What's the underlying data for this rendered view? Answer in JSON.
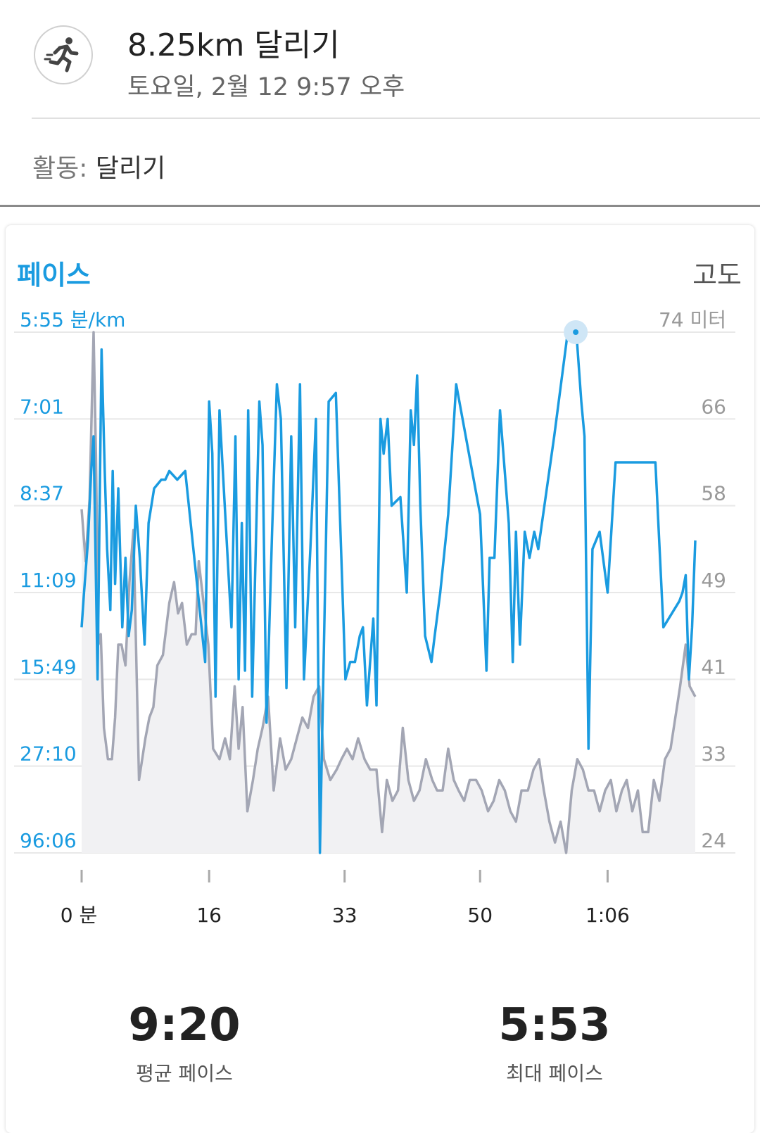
{
  "header": {
    "title": "8.25km 달리기",
    "subtitle": "토요일, 2월 12 9:57 오후",
    "icon": "running-person-icon"
  },
  "activity": {
    "label": "활동:",
    "value": "달리기"
  },
  "chart_card": {
    "title_left": "페이스",
    "title_right": "고도"
  },
  "stats": {
    "avg_pace_value": "9:20",
    "avg_pace_label": "평균 페이스",
    "max_pace_value": "5:53",
    "max_pace_label": "최대 페이스"
  },
  "colors": {
    "accent": "#1a9be0",
    "elevation": "#a3a6b4",
    "grid": "#e8e8e8"
  },
  "chart_data": {
    "type": "line",
    "title": "",
    "x_label": "",
    "x_ticks": [
      "0 분",
      "16",
      "33",
      "50",
      "1:06"
    ],
    "x_tick_minutes": [
      0,
      16,
      33,
      50,
      66
    ],
    "x_range_minutes": [
      0,
      77
    ],
    "left_axis_ticks": [
      "5:55 분/km",
      "7:01",
      "8:37",
      "11:09",
      "15:49",
      "27:10",
      "96:06"
    ],
    "right_axis_ticks": [
      "74 미터",
      "66",
      "58",
      "49",
      "41",
      "33",
      "24"
    ],
    "right_axis_range_m": [
      24,
      74
    ],
    "series": [
      {
        "name": "페이스",
        "axis": "left",
        "note_units": "pace level index: 0 = 96:06 (bottom) … 6 = 5:55 (top)",
        "x": [
          0,
          0.3,
          0.8,
          1.2,
          1.5,
          2.0,
          2.5,
          2.9,
          3.2,
          3.6,
          3.9,
          4.2,
          4.6,
          5.1,
          5.5,
          5.9,
          6.3,
          6.8,
          7.3,
          7.9,
          8.4,
          9.1,
          10.0,
          10.5,
          11.0,
          12.0,
          13.0,
          15.5,
          16.0,
          16.4,
          16.8,
          17.3,
          18.8,
          19.3,
          19.7,
          20.1,
          20.5,
          20.9,
          21.4,
          22.3,
          22.7,
          23.2,
          23.9,
          24.5,
          25.0,
          25.7,
          26.3,
          26.8,
          27.4,
          27.9,
          28.7,
          29.4,
          29.9,
          31.0,
          31.9,
          33.1,
          33.7,
          34.3,
          34.9,
          35.3,
          35.8,
          36.6,
          37.0,
          37.5,
          37.9,
          38.4,
          38.9,
          40.0,
          40.8,
          41.3,
          41.7,
          42.1,
          42.5,
          43.1,
          43.9,
          44.3,
          45.0,
          46.0,
          47.0,
          50.0,
          50.8,
          51.2,
          51.8,
          52.5,
          53.6,
          54.1,
          54.5,
          55.0,
          55.6,
          56.2,
          56.8,
          57.3,
          59.3,
          61.0,
          62.0,
          62.7,
          63.1,
          63.6,
          64.1,
          65.0,
          66.0,
          67.0,
          69.0,
          70.0,
          72.0,
          73.0,
          75.0,
          75.4,
          75.8,
          76.2,
          76.6,
          77.0
        ],
        "y": [
          2.6,
          3.0,
          3.6,
          4.4,
          4.8,
          2.0,
          5.8,
          4.4,
          3.5,
          2.8,
          4.4,
          3.1,
          4.2,
          2.6,
          3.4,
          2.5,
          2.8,
          4.0,
          3.4,
          2.4,
          3.8,
          4.2,
          4.3,
          4.3,
          4.4,
          4.3,
          4.4,
          2.2,
          5.2,
          4.6,
          1.8,
          5.1,
          2.6,
          4.8,
          2.0,
          3.8,
          2.1,
          5.1,
          1.8,
          5.2,
          4.7,
          1.5,
          3.7,
          5.4,
          5.0,
          1.9,
          4.8,
          2.6,
          5.4,
          2.0,
          3.5,
          5.0,
          0.0,
          5.2,
          5.3,
          2.0,
          2.2,
          2.2,
          2.5,
          2.6,
          1.7,
          2.7,
          1.7,
          5.0,
          4.6,
          5.0,
          4.0,
          4.1,
          3.0,
          5.1,
          4.7,
          5.5,
          4.0,
          2.5,
          2.2,
          2.5,
          3.0,
          3.9,
          5.4,
          3.9,
          2.1,
          3.4,
          3.4,
          5.1,
          3.8,
          2.2,
          3.7,
          2.4,
          3.7,
          3.4,
          3.7,
          3.5,
          4.8,
          6.0,
          6.1,
          5.2,
          4.8,
          1.2,
          3.5,
          3.7,
          3.0,
          4.5,
          4.5,
          4.5,
          4.5,
          2.6,
          2.9,
          3.0,
          3.2,
          2.0,
          2.6,
          3.6
        ],
        "color": "#1a9be0"
      },
      {
        "name": "고도",
        "axis": "right",
        "x": [
          0,
          0.5,
          1.0,
          1.5,
          1.8,
          2.1,
          2.4,
          2.8,
          3.3,
          3.8,
          4.2,
          4.6,
          5.0,
          5.5,
          6.0,
          6.5,
          7.2,
          8.0,
          8.5,
          9.0,
          9.5,
          10.2,
          11.0,
          11.6,
          12.1,
          12.6,
          13.2,
          13.8,
          14.3,
          14.7,
          15.3,
          15.9,
          16.5,
          17.3,
          18.0,
          18.6,
          19.2,
          19.7,
          20.2,
          20.8,
          21.5,
          22.1,
          22.7,
          23.4,
          24.1,
          24.9,
          25.6,
          26.3,
          27.0,
          27.7,
          28.4,
          29.1,
          29.8,
          30.4,
          31.2,
          32.0,
          32.6,
          33.3,
          34.0,
          34.7,
          35.5,
          36.2,
          37.0,
          37.7,
          38.3,
          39.0,
          39.7,
          40.3,
          41.0,
          41.7,
          42.4,
          43.2,
          44.0,
          44.6,
          45.3,
          46.0,
          46.7,
          47.3,
          48.0,
          48.7,
          49.5,
          50.2,
          51.0,
          51.7,
          52.4,
          53.1,
          53.8,
          54.5,
          55.2,
          56.0,
          56.7,
          57.4,
          58.0,
          58.7,
          59.4,
          60.1,
          60.8,
          61.5,
          62.2,
          62.9,
          63.6,
          64.3,
          65.0,
          65.7,
          66.4,
          67.1,
          67.8,
          68.4,
          69.1,
          69.8,
          70.4,
          71.1,
          71.8,
          72.5,
          73.2,
          73.9,
          74.5,
          75.1,
          75.8,
          76.3,
          77.0
        ],
        "y": [
          57,
          52,
          58,
          74,
          62,
          44,
          45,
          36,
          33,
          33,
          37,
          44,
          44,
          42,
          50,
          55,
          31,
          35,
          37,
          38,
          42,
          43,
          48,
          50,
          47,
          48,
          44,
          45,
          45,
          52,
          48,
          44,
          34,
          33,
          35,
          33,
          40,
          34,
          38,
          28,
          31,
          34,
          36,
          39,
          30,
          35,
          32,
          33,
          35,
          37,
          36,
          39,
          40,
          33,
          31,
          32,
          33,
          34,
          33,
          35,
          33,
          32,
          32,
          26,
          31,
          29,
          30,
          36,
          31,
          29,
          30,
          33,
          31,
          30,
          30,
          34,
          31,
          30,
          29,
          31,
          31,
          30,
          28,
          29,
          31,
          30,
          28,
          27,
          30,
          30,
          32,
          33,
          30,
          27,
          25,
          27,
          24,
          30,
          33,
          32,
          30,
          30,
          28,
          30,
          31,
          28,
          30,
          31,
          28,
          30,
          26,
          26,
          31,
          29,
          33,
          34,
          37,
          40,
          44,
          40,
          39
        ],
        "color": "#a3a6b4"
      }
    ],
    "highlight_point": {
      "series": "페이스",
      "x": 62.0,
      "value": "5:55"
    },
    "grid": true
  }
}
